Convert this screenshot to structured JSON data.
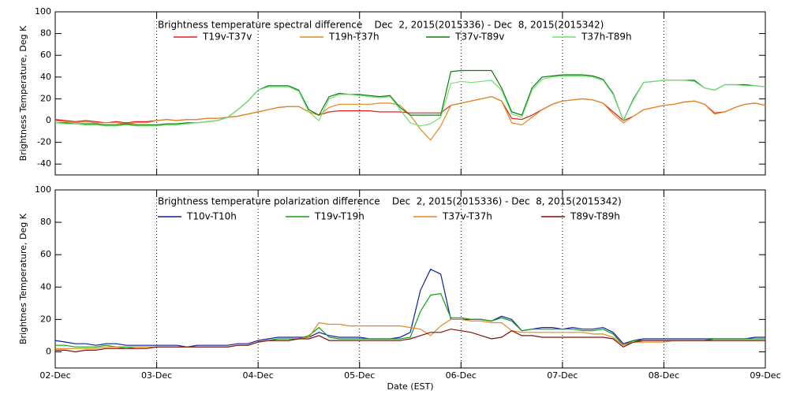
{
  "chart_data": [
    {
      "type": "line",
      "title": "Brightness temperature spectral difference    Dec  2, 2015(2015336) - Dec  8, 2015(2015342)",
      "y_label": "Brightness Temperature, Deg K",
      "xlim": [
        0,
        7
      ],
      "xticks": [
        0,
        1,
        2,
        3,
        4,
        5,
        6,
        7
      ],
      "ylim": [
        -50,
        100
      ],
      "yticks": [
        -40,
        -20,
        0,
        20,
        40,
        60,
        80,
        100
      ],
      "grid": true,
      "x": [
        0,
        0.1,
        0.2,
        0.3,
        0.4,
        0.5,
        0.6,
        0.7,
        0.8,
        0.9,
        1,
        1.1,
        1.2,
        1.3,
        1.4,
        1.5,
        1.6,
        1.7,
        1.8,
        1.9,
        2,
        2.1,
        2.2,
        2.3,
        2.4,
        2.5,
        2.6,
        2.7,
        2.8,
        2.9,
        3,
        3.1,
        3.2,
        3.3,
        3.4,
        3.5,
        3.6,
        3.7,
        3.8,
        3.9,
        4,
        4.1,
        4.2,
        4.3,
        4.4,
        4.5,
        4.6,
        4.7,
        4.8,
        4.9,
        5,
        5.1,
        5.2,
        5.3,
        5.4,
        5.5,
        5.6,
        5.7,
        5.8,
        5.9,
        6,
        6.1,
        6.2,
        6.3,
        6.4,
        6.5,
        6.6,
        6.7,
        6.8,
        6.9,
        7
      ],
      "series": [
        {
          "name": "T19v-T37v",
          "color": "#e02020",
          "values": [
            1,
            0,
            -1,
            0,
            -1,
            -2,
            -1,
            -2,
            -1,
            -1,
            0,
            1,
            0,
            1,
            1,
            2,
            2,
            3,
            4,
            6,
            8,
            10,
            12,
            13,
            13,
            8,
            5,
            8,
            9,
            9,
            9,
            9,
            8,
            8,
            8,
            7,
            7,
            7,
            7,
            14,
            16,
            18,
            20,
            22,
            18,
            2,
            1,
            5,
            10,
            15,
            18,
            19,
            20,
            19,
            16,
            8,
            0,
            4,
            10,
            12,
            14,
            15,
            17,
            18,
            15,
            7,
            8,
            12,
            15,
            16,
            14
          ]
        },
        {
          "name": "T19h-T37h",
          "color": "#e08a20",
          "values": [
            0,
            -1,
            -2,
            -1,
            -2,
            -2,
            -2,
            -3,
            -2,
            -2,
            0,
            1,
            0,
            1,
            1,
            2,
            2,
            3,
            4,
            6,
            8,
            10,
            12,
            13,
            13,
            8,
            5,
            12,
            15,
            15,
            15,
            15,
            16,
            16,
            14,
            5,
            -8,
            -18,
            -5,
            14,
            16,
            18,
            20,
            22,
            18,
            -2,
            -4,
            3,
            10,
            15,
            18,
            19,
            20,
            19,
            16,
            6,
            -2,
            4,
            10,
            12,
            14,
            15,
            17,
            18,
            15,
            6,
            8,
            12,
            15,
            16,
            14
          ]
        },
        {
          "name": "T37v-T89v",
          "color": "#107a10",
          "values": [
            -2,
            -2,
            -3,
            -3,
            -3,
            -4,
            -4,
            -3,
            -4,
            -4,
            -4,
            -3,
            -3,
            -2,
            -2,
            -1,
            0,
            3,
            10,
            18,
            28,
            32,
            32,
            32,
            28,
            10,
            5,
            22,
            25,
            24,
            24,
            23,
            22,
            23,
            12,
            5,
            5,
            5,
            5,
            45,
            46,
            46,
            46,
            46,
            30,
            8,
            5,
            30,
            40,
            41,
            42,
            42,
            42,
            41,
            38,
            25,
            0,
            20,
            35,
            36,
            37,
            37,
            37,
            37,
            30,
            28,
            33,
            33,
            33,
            32,
            31
          ]
        },
        {
          "name": "T37h-T89h",
          "color": "#70e070",
          "values": [
            -2,
            -3,
            -3,
            -4,
            -4,
            -5,
            -5,
            -4,
            -5,
            -5,
            -5,
            -4,
            -4,
            -3,
            -2,
            -1,
            0,
            3,
            10,
            18,
            28,
            31,
            31,
            31,
            27,
            8,
            0,
            20,
            24,
            24,
            23,
            22,
            21,
            22,
            10,
            -2,
            -5,
            -3,
            3,
            34,
            36,
            35,
            36,
            37,
            28,
            6,
            3,
            28,
            38,
            40,
            41,
            41,
            41,
            40,
            37,
            24,
            0,
            19,
            35,
            36,
            37,
            37,
            37,
            36,
            30,
            28,
            33,
            33,
            32,
            32,
            31
          ]
        }
      ]
    },
    {
      "type": "line",
      "title": "Brightness temperature polarization difference    Dec  2, 2015(2015336) - Dec  8, 2015(2015342)",
      "y_label": "Brightnes Temperature, Deg K",
      "x_label": "Date (EST)",
      "xlim": [
        0,
        7
      ],
      "xticks": [
        {
          "value": 0,
          "label": "02-Dec"
        },
        {
          "value": 1,
          "label": "03-Dec"
        },
        {
          "value": 2,
          "label": "04-Dec"
        },
        {
          "value": 3,
          "label": "05-Dec"
        },
        {
          "value": 4,
          "label": "06-Dec"
        },
        {
          "value": 5,
          "label": "07-Dec"
        },
        {
          "value": 6,
          "label": "08-Dec"
        },
        {
          "value": 7,
          "label": "09-Dec"
        }
      ],
      "ylim": [
        -10,
        100
      ],
      "yticks": [
        0,
        20,
        40,
        60,
        80,
        100
      ],
      "grid": true,
      "x": [
        0,
        0.1,
        0.2,
        0.3,
        0.4,
        0.5,
        0.6,
        0.7,
        0.8,
        0.9,
        1,
        1.1,
        1.2,
        1.3,
        1.4,
        1.5,
        1.6,
        1.7,
        1.8,
        1.9,
        2,
        2.1,
        2.2,
        2.3,
        2.4,
        2.5,
        2.6,
        2.7,
        2.8,
        2.9,
        3,
        3.1,
        3.2,
        3.3,
        3.4,
        3.5,
        3.6,
        3.7,
        3.8,
        3.9,
        4,
        4.1,
        4.2,
        4.3,
        4.4,
        4.5,
        4.6,
        4.7,
        4.8,
        4.9,
        5,
        5.1,
        5.2,
        5.3,
        5.4,
        5.5,
        5.6,
        5.7,
        5.8,
        5.9,
        6,
        6.1,
        6.2,
        6.3,
        6.4,
        6.5,
        6.6,
        6.7,
        6.8,
        6.9,
        7
      ],
      "series": [
        {
          "name": "T10v-T10h",
          "color": "#1020a0",
          "values": [
            7,
            6,
            5,
            5,
            4,
            5,
            5,
            4,
            4,
            4,
            4,
            4,
            4,
            3,
            4,
            4,
            4,
            4,
            5,
            5,
            7,
            8,
            9,
            9,
            9,
            9,
            12,
            10,
            9,
            9,
            9,
            8,
            8,
            8,
            9,
            12,
            38,
            51,
            48,
            20,
            20,
            20,
            20,
            19,
            22,
            20,
            13,
            14,
            15,
            15,
            14,
            15,
            14,
            14,
            15,
            12,
            5,
            7,
            8,
            8,
            8,
            8,
            8,
            8,
            8,
            8,
            8,
            8,
            8,
            9,
            9
          ]
        },
        {
          "name": "T19v-T19h",
          "color": "#10a010",
          "values": [
            4,
            4,
            3,
            3,
            3,
            4,
            3,
            3,
            3,
            3,
            3,
            3,
            3,
            3,
            3,
            3,
            3,
            3,
            4,
            4,
            6,
            7,
            8,
            8,
            8,
            10,
            15,
            9,
            8,
            8,
            8,
            8,
            8,
            8,
            8,
            9,
            25,
            35,
            36,
            21,
            21,
            20,
            20,
            19,
            21,
            19,
            13,
            14,
            14,
            14,
            14,
            14,
            13,
            13,
            14,
            11,
            4,
            7,
            7,
            7,
            7,
            7,
            7,
            7,
            7,
            8,
            8,
            8,
            8,
            8,
            8
          ]
        },
        {
          "name": "T37v-T37h",
          "color": "#e08a20",
          "values": [
            2,
            2,
            2,
            2,
            2,
            3,
            3,
            2,
            3,
            3,
            3,
            3,
            3,
            3,
            3,
            3,
            3,
            3,
            4,
            4,
            6,
            7,
            7,
            7,
            8,
            9,
            18,
            17,
            17,
            16,
            16,
            16,
            16,
            16,
            16,
            15,
            14,
            10,
            16,
            20,
            20,
            19,
            19,
            18,
            18,
            13,
            12,
            12,
            12,
            12,
            12,
            12,
            12,
            11,
            11,
            9,
            4,
            6,
            6,
            6,
            6,
            7,
            7,
            7,
            7,
            7,
            7,
            7,
            7,
            7,
            7
          ]
        },
        {
          "name": "T89v-T89h",
          "color": "#801010",
          "values": [
            1,
            1,
            0,
            1,
            1,
            2,
            2,
            2,
            2,
            2,
            3,
            3,
            3,
            3,
            3,
            3,
            3,
            3,
            4,
            4,
            6,
            7,
            7,
            7,
            8,
            8,
            10,
            7,
            7,
            7,
            7,
            7,
            7,
            7,
            7,
            8,
            10,
            12,
            12,
            14,
            13,
            12,
            10,
            8,
            9,
            13,
            10,
            10,
            9,
            9,
            9,
            9,
            9,
            9,
            9,
            8,
            3,
            6,
            7,
            7,
            7,
            7,
            7,
            7,
            7,
            7,
            7,
            7,
            7,
            7,
            7
          ]
        }
      ]
    }
  ]
}
